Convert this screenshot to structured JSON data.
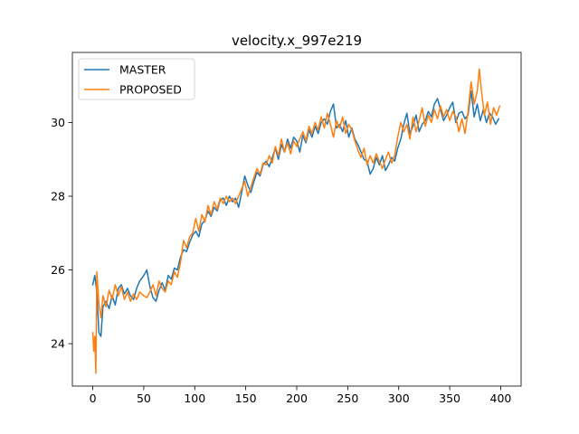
{
  "chart_data": {
    "type": "line",
    "title": "velocity.x_997e219",
    "xlabel": "",
    "ylabel": "",
    "xlim": [
      -20,
      420
    ],
    "ylim": [
      22.85,
      31.9
    ],
    "xticks": [
      0,
      50,
      100,
      150,
      200,
      250,
      300,
      350,
      400
    ],
    "yticks": [
      24,
      26,
      28,
      30
    ],
    "legend_position": "upper-left",
    "grid": false,
    "series": [
      {
        "name": "MASTER",
        "color": "#1f77b4",
        "points": [
          [
            0,
            25.6
          ],
          [
            2,
            25.85
          ],
          [
            4,
            25.4
          ],
          [
            6,
            24.3
          ],
          [
            8,
            24.2
          ],
          [
            10,
            25.0
          ],
          [
            13,
            25.15
          ],
          [
            16,
            24.95
          ],
          [
            19,
            25.3
          ],
          [
            22,
            25.05
          ],
          [
            25,
            25.5
          ],
          [
            28,
            25.6
          ],
          [
            31,
            25.35
          ],
          [
            34,
            25.5
          ],
          [
            37,
            25.3
          ],
          [
            40,
            25.2
          ],
          [
            43,
            25.5
          ],
          [
            46,
            25.7
          ],
          [
            50,
            25.85
          ],
          [
            53,
            26.0
          ],
          [
            56,
            25.55
          ],
          [
            59,
            25.25
          ],
          [
            62,
            25.15
          ],
          [
            65,
            25.45
          ],
          [
            68,
            25.65
          ],
          [
            71,
            25.45
          ],
          [
            74,
            25.85
          ],
          [
            77,
            25.75
          ],
          [
            80,
            26.05
          ],
          [
            83,
            26.0
          ],
          [
            86,
            26.35
          ],
          [
            89,
            26.55
          ],
          [
            92,
            26.5
          ],
          [
            95,
            26.75
          ],
          [
            98,
            26.95
          ],
          [
            101,
            27.05
          ],
          [
            104,
            26.9
          ],
          [
            107,
            27.25
          ],
          [
            110,
            27.35
          ],
          [
            113,
            27.6
          ],
          [
            116,
            27.45
          ],
          [
            119,
            27.7
          ],
          [
            122,
            27.6
          ],
          [
            125,
            27.9
          ],
          [
            128,
            27.95
          ],
          [
            131,
            27.75
          ],
          [
            134,
            28.0
          ],
          [
            137,
            27.85
          ],
          [
            140,
            27.95
          ],
          [
            143,
            27.7
          ],
          [
            146,
            28.1
          ],
          [
            149,
            28.55
          ],
          [
            152,
            28.3
          ],
          [
            155,
            28.1
          ],
          [
            158,
            28.4
          ],
          [
            161,
            28.65
          ],
          [
            164,
            28.55
          ],
          [
            167,
            28.85
          ],
          [
            170,
            28.95
          ],
          [
            173,
            28.8
          ],
          [
            176,
            29.05
          ],
          [
            179,
            29.3
          ],
          [
            182,
            29.0
          ],
          [
            185,
            29.4
          ],
          [
            188,
            29.2
          ],
          [
            191,
            29.55
          ],
          [
            194,
            29.3
          ],
          [
            197,
            29.6
          ],
          [
            200,
            29.5
          ],
          [
            203,
            29.2
          ],
          [
            206,
            29.65
          ],
          [
            209,
            29.45
          ],
          [
            212,
            29.8
          ],
          [
            215,
            29.6
          ],
          [
            218,
            29.9
          ],
          [
            221,
            29.7
          ],
          [
            224,
            30.0
          ],
          [
            227,
            30.1
          ],
          [
            230,
            29.95
          ],
          [
            233,
            30.3
          ],
          [
            236,
            30.5
          ],
          [
            239,
            29.85
          ],
          [
            242,
            29.95
          ],
          [
            245,
            29.75
          ],
          [
            248,
            30.05
          ],
          [
            251,
            29.6
          ],
          [
            254,
            29.85
          ],
          [
            257,
            29.55
          ],
          [
            260,
            29.4
          ],
          [
            263,
            29.2
          ],
          [
            266,
            29.0
          ],
          [
            269,
            28.95
          ],
          [
            272,
            28.6
          ],
          [
            275,
            28.75
          ],
          [
            278,
            29.05
          ],
          [
            281,
            28.85
          ],
          [
            284,
            29.1
          ],
          [
            287,
            28.7
          ],
          [
            290,
            28.85
          ],
          [
            293,
            29.05
          ],
          [
            296,
            28.95
          ],
          [
            299,
            29.3
          ],
          [
            302,
            29.55
          ],
          [
            305,
            29.95
          ],
          [
            308,
            30.25
          ],
          [
            311,
            29.7
          ],
          [
            314,
            29.9
          ],
          [
            317,
            30.2
          ],
          [
            320,
            29.75
          ],
          [
            323,
            29.95
          ],
          [
            326,
            30.05
          ],
          [
            329,
            30.3
          ],
          [
            332,
            30.15
          ],
          [
            335,
            30.5
          ],
          [
            338,
            30.65
          ],
          [
            341,
            30.35
          ],
          [
            344,
            30.05
          ],
          [
            347,
            30.2
          ],
          [
            350,
            30.4
          ],
          [
            353,
            30.55
          ],
          [
            356,
            30.0
          ],
          [
            359,
            30.25
          ],
          [
            362,
            30.3
          ],
          [
            365,
            30.1
          ],
          [
            368,
            30.2
          ],
          [
            371,
            30.85
          ],
          [
            374,
            30.15
          ],
          [
            377,
            30.5
          ],
          [
            380,
            30.05
          ],
          [
            383,
            30.35
          ],
          [
            386,
            30.0
          ],
          [
            389,
            30.25
          ],
          [
            392,
            30.15
          ],
          [
            395,
            29.95
          ],
          [
            398,
            30.1
          ]
        ]
      },
      {
        "name": "PROPOSED",
        "color": "#ff7f0e",
        "points": [
          [
            0,
            24.3
          ],
          [
            1,
            23.8
          ],
          [
            2,
            24.2
          ],
          [
            3,
            23.2
          ],
          [
            4,
            25.95
          ],
          [
            6,
            25.1
          ],
          [
            8,
            24.7
          ],
          [
            10,
            25.3
          ],
          [
            13,
            25.0
          ],
          [
            16,
            25.45
          ],
          [
            19,
            25.2
          ],
          [
            22,
            25.6
          ],
          [
            25,
            25.3
          ],
          [
            28,
            25.55
          ],
          [
            31,
            25.2
          ],
          [
            34,
            25.4
          ],
          [
            37,
            25.15
          ],
          [
            40,
            25.35
          ],
          [
            43,
            25.2
          ],
          [
            46,
            25.4
          ],
          [
            50,
            25.3
          ],
          [
            53,
            25.25
          ],
          [
            56,
            25.4
          ],
          [
            59,
            25.6
          ],
          [
            62,
            25.3
          ],
          [
            65,
            25.7
          ],
          [
            68,
            25.5
          ],
          [
            71,
            25.4
          ],
          [
            74,
            25.7
          ],
          [
            77,
            25.6
          ],
          [
            80,
            25.95
          ],
          [
            83,
            25.8
          ],
          [
            86,
            26.2
          ],
          [
            89,
            26.8
          ],
          [
            92,
            26.6
          ],
          [
            95,
            26.9
          ],
          [
            98,
            27.0
          ],
          [
            101,
            27.4
          ],
          [
            104,
            27.05
          ],
          [
            107,
            27.5
          ],
          [
            110,
            27.3
          ],
          [
            113,
            27.75
          ],
          [
            116,
            27.5
          ],
          [
            119,
            27.85
          ],
          [
            122,
            27.65
          ],
          [
            125,
            27.95
          ],
          [
            128,
            27.8
          ],
          [
            131,
            28.0
          ],
          [
            134,
            27.85
          ],
          [
            137,
            27.95
          ],
          [
            140,
            27.8
          ],
          [
            143,
            28.0
          ],
          [
            146,
            28.2
          ],
          [
            149,
            28.4
          ],
          [
            152,
            28.0
          ],
          [
            155,
            28.25
          ],
          [
            158,
            28.5
          ],
          [
            161,
            28.75
          ],
          [
            164,
            28.6
          ],
          [
            167,
            28.9
          ],
          [
            170,
            28.85
          ],
          [
            173,
            29.1
          ],
          [
            176,
            28.9
          ],
          [
            179,
            29.35
          ],
          [
            182,
            29.1
          ],
          [
            185,
            29.55
          ],
          [
            188,
            29.2
          ],
          [
            191,
            29.45
          ],
          [
            194,
            29.15
          ],
          [
            197,
            29.5
          ],
          [
            200,
            29.35
          ],
          [
            203,
            29.55
          ],
          [
            206,
            29.75
          ],
          [
            209,
            29.5
          ],
          [
            212,
            29.9
          ],
          [
            215,
            29.7
          ],
          [
            218,
            30.0
          ],
          [
            221,
            29.8
          ],
          [
            224,
            30.15
          ],
          [
            227,
            29.85
          ],
          [
            230,
            30.25
          ],
          [
            233,
            29.95
          ],
          [
            236,
            29.6
          ],
          [
            239,
            30.05
          ],
          [
            242,
            29.85
          ],
          [
            245,
            30.15
          ],
          [
            248,
            29.7
          ],
          [
            251,
            29.95
          ],
          [
            254,
            29.8
          ],
          [
            257,
            29.5
          ],
          [
            260,
            29.25
          ],
          [
            263,
            29.05
          ],
          [
            266,
            29.3
          ],
          [
            269,
            28.85
          ],
          [
            272,
            29.1
          ],
          [
            275,
            28.9
          ],
          [
            278,
            29.15
          ],
          [
            281,
            28.95
          ],
          [
            284,
            28.75
          ],
          [
            287,
            29.0
          ],
          [
            290,
            29.2
          ],
          [
            293,
            28.9
          ],
          [
            296,
            29.1
          ],
          [
            299,
            29.6
          ],
          [
            302,
            30.0
          ],
          [
            305,
            29.75
          ],
          [
            308,
            29.95
          ],
          [
            311,
            29.55
          ],
          [
            314,
            30.15
          ],
          [
            317,
            29.75
          ],
          [
            320,
            30.05
          ],
          [
            323,
            30.4
          ],
          [
            326,
            29.9
          ],
          [
            329,
            30.2
          ],
          [
            332,
            30.0
          ],
          [
            335,
            30.35
          ],
          [
            338,
            30.1
          ],
          [
            341,
            30.45
          ],
          [
            344,
            30.15
          ],
          [
            347,
            30.35
          ],
          [
            350,
            30.05
          ],
          [
            353,
            30.3
          ],
          [
            356,
            30.15
          ],
          [
            359,
            29.75
          ],
          [
            362,
            30.1
          ],
          [
            365,
            29.7
          ],
          [
            368,
            30.3
          ],
          [
            371,
            31.1
          ],
          [
            374,
            30.5
          ],
          [
            377,
            30.85
          ],
          [
            379,
            31.45
          ],
          [
            381,
            30.9
          ],
          [
            384,
            30.2
          ],
          [
            387,
            30.55
          ],
          [
            390,
            29.95
          ],
          [
            393,
            30.4
          ],
          [
            396,
            30.2
          ],
          [
            399,
            30.45
          ]
        ]
      }
    ]
  }
}
